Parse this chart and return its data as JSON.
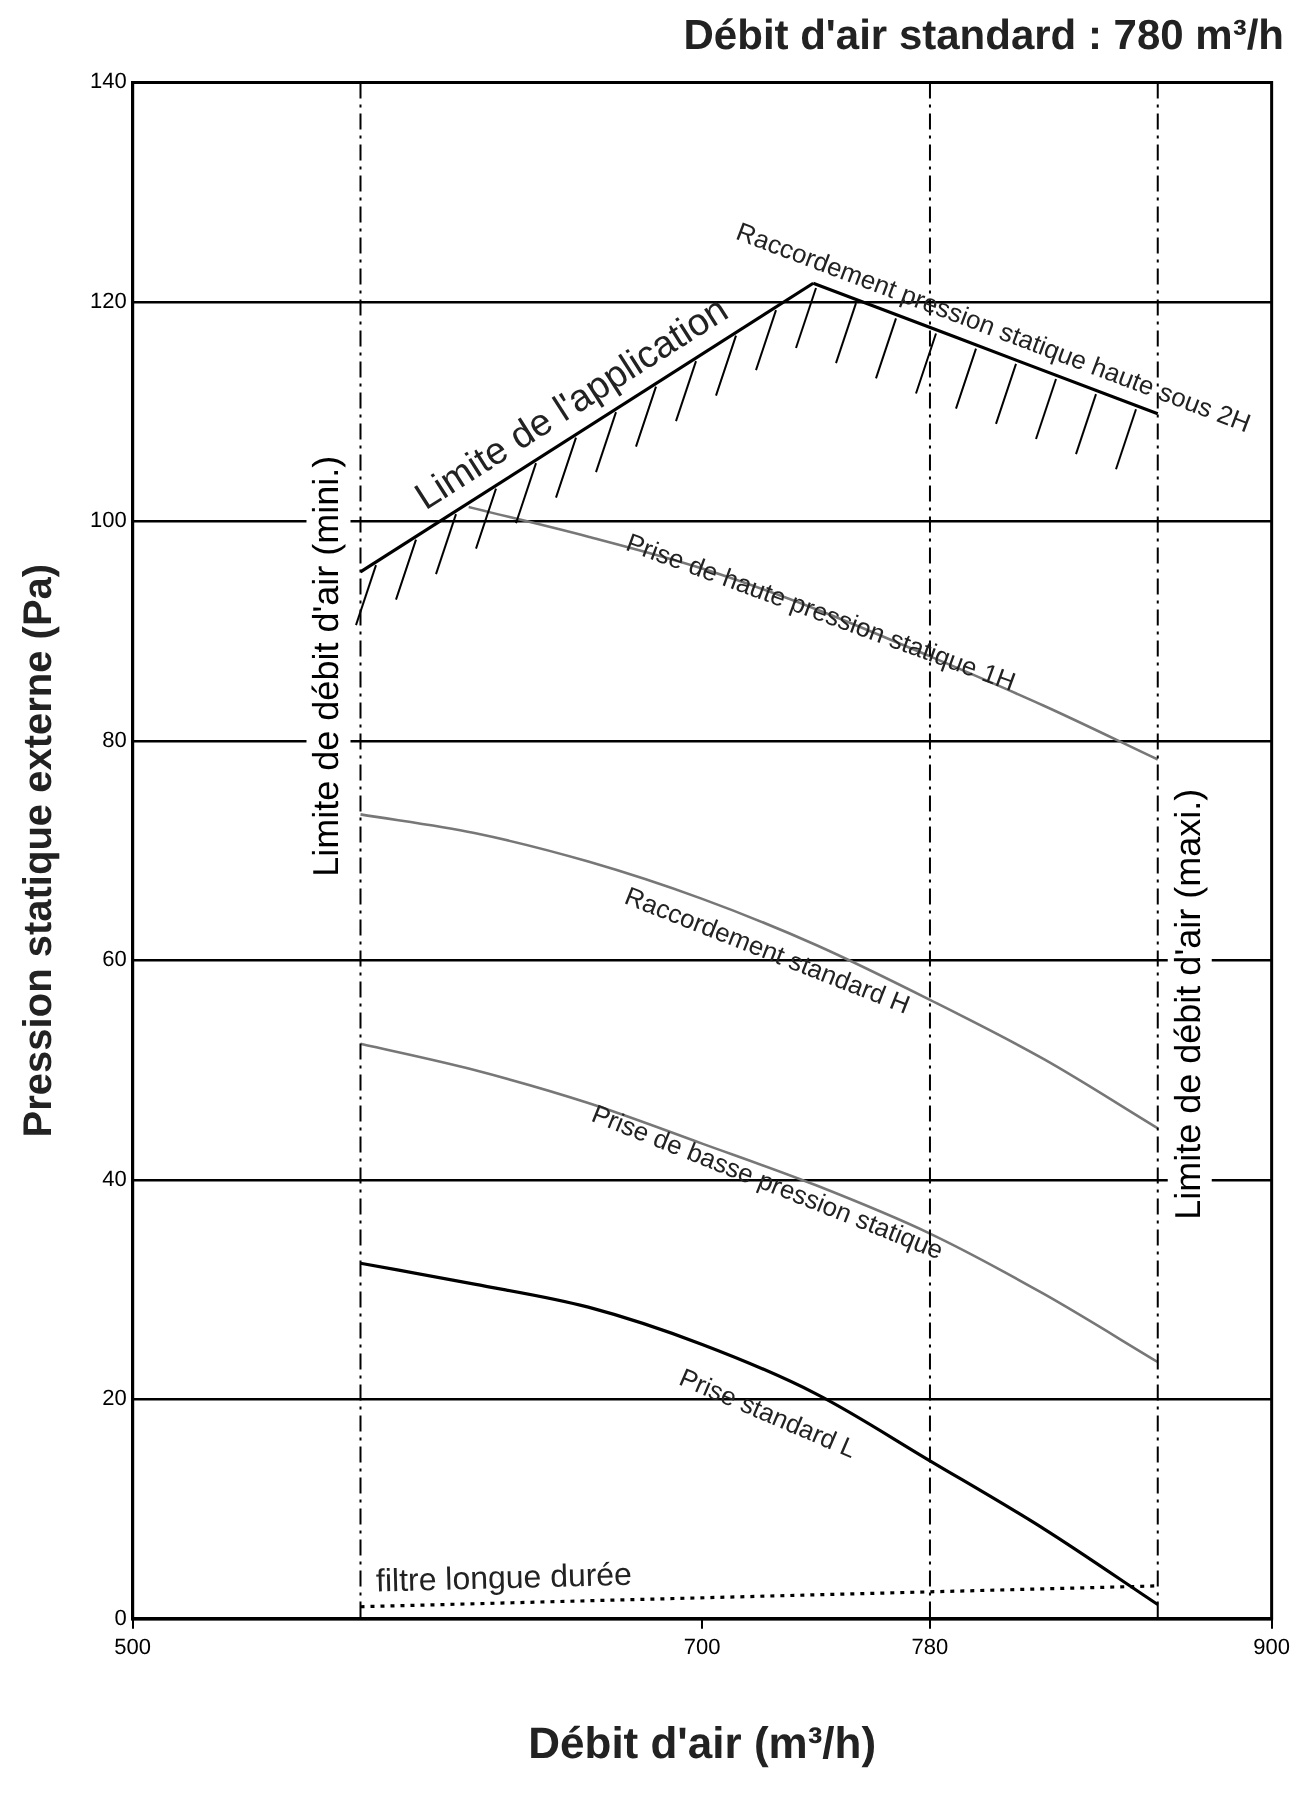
{
  "chart_data": {
    "type": "line",
    "title": "Débit d'air standard : 780 m³/h",
    "xlabel": "Débit d'air (m³/h)",
    "ylabel": "Pression statique externe (Pa)",
    "xlim": [
      500,
      900
    ],
    "xticks": [
      500,
      700,
      780,
      900
    ],
    "ylim": [
      0,
      140
    ],
    "yticks": [
      0,
      20,
      40,
      60,
      80,
      100,
      120,
      140
    ],
    "grid": "y",
    "legend": false,
    "marker": "none",
    "series": [
      {
        "name": "Limite de l'application",
        "color": "#000000",
        "x": [
          580,
          739
        ],
        "values": [
          95.4,
          121.7
        ]
      },
      {
        "name": "Raccordement pression statique haute sous 2H",
        "color": "#000000",
        "x": [
          739,
          860
        ],
        "values": [
          121.7,
          109.8
        ]
      },
      {
        "name": "Prise de haute pression statique 1H",
        "color": "#777777",
        "x": [
          618,
          660,
          700,
          740,
          780,
          820,
          860
        ],
        "values": [
          101.3,
          98.6,
          95.7,
          92.0,
          87.7,
          83.2,
          78.3
        ]
      },
      {
        "name": "Raccordement standard H",
        "color": "#777777",
        "x": [
          580,
          620,
          660,
          700,
          740,
          780,
          820,
          860
        ],
        "values": [
          73.3,
          71.6,
          69.0,
          65.6,
          61.4,
          56.4,
          51.0,
          44.7
        ]
      },
      {
        "name": "Prise de basse pression statique",
        "color": "#777777",
        "x": [
          580,
          620,
          660,
          700,
          740,
          780,
          820,
          860
        ],
        "values": [
          52.4,
          50.0,
          47.0,
          43.3,
          39.5,
          35.1,
          29.6,
          23.4
        ]
      },
      {
        "name": "Prise standard L",
        "color": "#000000",
        "x": [
          580,
          620,
          660,
          700,
          740,
          780,
          820,
          860
        ],
        "values": [
          32.4,
          30.5,
          28.4,
          25.0,
          20.5,
          14.4,
          8.2,
          1.3
        ]
      },
      {
        "name": "filtre longue durée",
        "color": "#000000",
        "line_style": "dotted",
        "x": [
          580,
          860
        ],
        "values": [
          1.1,
          3.0
        ]
      }
    ],
    "ref_lines": [
      {
        "axis": "x",
        "value": 580,
        "label": "Limite de débit d'air (mini.)",
        "line_style": "dashdot"
      },
      {
        "axis": "x",
        "value": 780,
        "label": null,
        "line_style": "dashdot"
      },
      {
        "axis": "x",
        "value": 860,
        "label": "Limite de débit d'air (maxi.)",
        "line_style": "dashdot"
      }
    ]
  }
}
